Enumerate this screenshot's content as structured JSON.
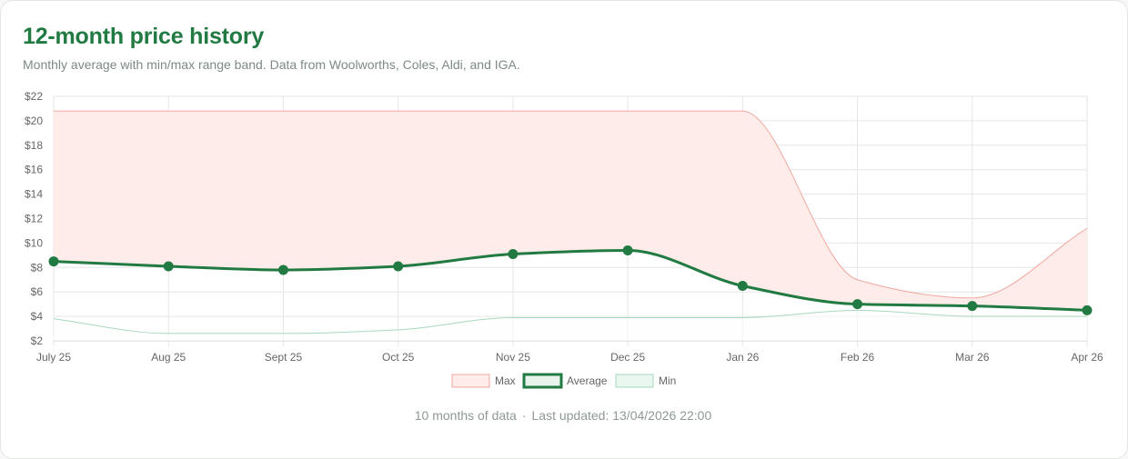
{
  "header": {
    "title": "12-month price history",
    "subtitle": "Monthly average with min/max range band. Data from Woolworths, Coles, Aldi, and IGA."
  },
  "footer": {
    "months_text": "10 months of data",
    "separator": "·",
    "updated_text": "Last updated: 13/04/2026 22:00"
  },
  "chart_data": {
    "type": "line",
    "title": "12-month price history",
    "xlabel": "",
    "ylabel": "",
    "categories": [
      "July 25",
      "Aug 25",
      "Sept 25",
      "Oct 25",
      "Nov 25",
      "Dec 25",
      "Jan 26",
      "Feb 26",
      "Mar 26",
      "Apr 26"
    ],
    "ylim": [
      2,
      22
    ],
    "yticks": [
      2,
      4,
      6,
      8,
      10,
      12,
      14,
      16,
      18,
      20,
      22
    ],
    "ytick_prefix": "$",
    "grid": true,
    "legend_position": "bottom",
    "series": [
      {
        "name": "Max",
        "values": [
          20.8,
          20.8,
          20.8,
          20.8,
          20.8,
          20.8,
          20.8,
          7.0,
          5.5,
          11.2
        ],
        "color": "#f0a8a0",
        "fill": "#fdece9",
        "style": "area"
      },
      {
        "name": "Average",
        "values": [
          8.5,
          8.1,
          7.8,
          8.1,
          9.1,
          9.4,
          6.5,
          5.0,
          4.85,
          4.5
        ],
        "color": "#227a43",
        "fill": "#e8f3ec",
        "style": "line-markers"
      },
      {
        "name": "Min",
        "values": [
          3.8,
          2.6,
          2.6,
          2.9,
          3.9,
          3.9,
          3.9,
          4.5,
          4.0,
          4.0
        ],
        "color": "#a8d8bf",
        "fill": "#eaf6f0",
        "style": "area"
      }
    ]
  }
}
